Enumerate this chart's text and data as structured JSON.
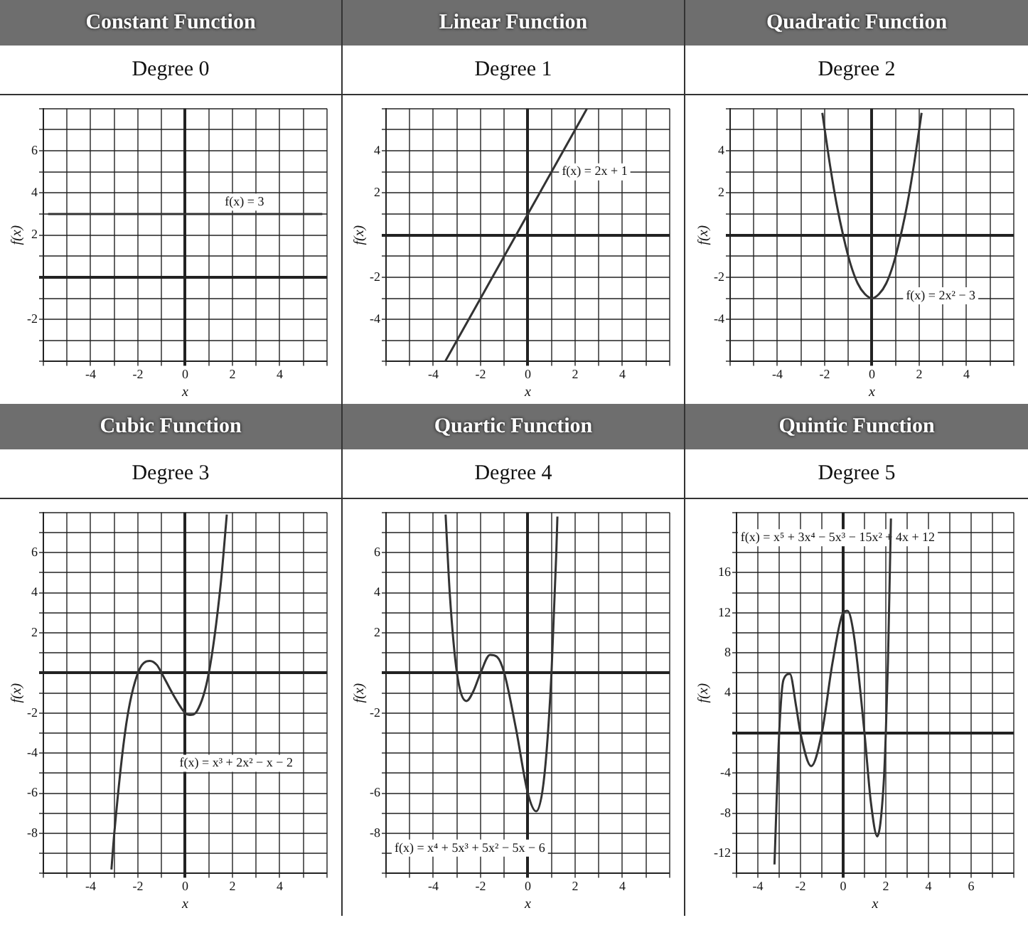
{
  "chart_data": [
    {
      "type": "line",
      "title": "Constant Function",
      "subtitle": "Degree 0",
      "xlabel": "x",
      "ylabel": "f(x)",
      "grid": true,
      "xlim": [
        -6,
        6
      ],
      "ylim": [
        -4,
        8
      ],
      "xticks": [
        {
          "value": -6,
          "label": null
        },
        {
          "value": -5,
          "label": null
        },
        -4,
        {
          "value": -3,
          "label": null
        },
        -2,
        {
          "value": -1,
          "label": null
        },
        0,
        {
          "value": 1,
          "label": null
        },
        2,
        {
          "value": 3,
          "label": null
        },
        4,
        {
          "value": 5,
          "label": null
        },
        {
          "value": 6,
          "label": null
        }
      ],
      "yticks": [
        {
          "value": -4,
          "label": null
        },
        {
          "value": -3,
          "label": null
        },
        -2,
        {
          "value": -1,
          "label": null
        },
        {
          "value": 0,
          "label": null
        },
        {
          "value": 1,
          "label": null
        },
        2,
        {
          "value": 3,
          "label": null
        },
        4,
        {
          "value": 5,
          "label": null
        },
        6,
        {
          "value": 7,
          "label": null
        },
        {
          "value": 8,
          "label": null
        }
      ],
      "series": [
        {
          "color": "#333333",
          "x": [
            -5.8,
            -4,
            -2,
            0,
            2,
            4,
            5.8
          ],
          "values": [
            3,
            3,
            3,
            3,
            3,
            3,
            3
          ]
        }
      ],
      "annotations": [
        "f(x) = 3"
      ]
    },
    {
      "type": "line",
      "title": "Linear Function",
      "subtitle": "Degree 1",
      "xlabel": "x",
      "ylabel": "f(x)",
      "grid": true,
      "xlim": [
        -6,
        6
      ],
      "ylim": [
        -6,
        6
      ],
      "xticks": [
        {
          "value": -6,
          "label": null
        },
        {
          "value": -5,
          "label": null
        },
        -4,
        {
          "value": -3,
          "label": null
        },
        -2,
        {
          "value": -1,
          "label": null
        },
        0,
        {
          "value": 1,
          "label": null
        },
        2,
        {
          "value": 3,
          "label": null
        },
        4,
        {
          "value": 5,
          "label": null
        },
        {
          "value": 6,
          "label": null
        }
      ],
      "yticks": [
        {
          "value": -6,
          "label": null
        },
        {
          "value": -5,
          "label": null
        },
        -4,
        {
          "value": -3,
          "label": null
        },
        -2,
        {
          "value": -1,
          "label": null
        },
        {
          "value": 0,
          "label": null
        },
        {
          "value": 1,
          "label": null
        },
        2,
        {
          "value": 3,
          "label": null
        },
        4,
        {
          "value": 5,
          "label": null
        },
        {
          "value": 6,
          "label": null
        }
      ],
      "series": [
        {
          "color": "#333333",
          "x": [
            -3.5,
            -2,
            -1,
            0,
            1,
            2,
            2.5
          ],
          "values": [
            -6,
            -3,
            -1,
            1,
            3,
            5,
            6
          ]
        }
      ],
      "annotations": [
        "f(x) = 2x + 1"
      ]
    },
    {
      "type": "line",
      "title": "Quadratic Function",
      "subtitle": "Degree 2",
      "xlabel": "x",
      "ylabel": "f(x)",
      "grid": true,
      "xlim": [
        -6,
        6
      ],
      "ylim": [
        -6,
        6
      ],
      "xticks": [
        {
          "value": -6,
          "label": null
        },
        {
          "value": -5,
          "label": null
        },
        -4,
        {
          "value": -3,
          "label": null
        },
        -2,
        {
          "value": -1,
          "label": null
        },
        0,
        {
          "value": 1,
          "label": null
        },
        2,
        {
          "value": 3,
          "label": null
        },
        4,
        {
          "value": 5,
          "label": null
        },
        {
          "value": 6,
          "label": null
        }
      ],
      "yticks": [
        {
          "value": -6,
          "label": null
        },
        {
          "value": -5,
          "label": null
        },
        -4,
        {
          "value": -3,
          "label": null
        },
        -2,
        {
          "value": -1,
          "label": null
        },
        {
          "value": 0,
          "label": null
        },
        {
          "value": 1,
          "label": null
        },
        2,
        {
          "value": 3,
          "label": null
        },
        4,
        {
          "value": 5,
          "label": null
        },
        {
          "value": 6,
          "label": null
        }
      ],
      "series": [
        {
          "color": "#333333",
          "x": [
            -2.1,
            -1.8,
            -1.5,
            -1.2,
            -0.9,
            -0.6,
            -0.3,
            0,
            0.3,
            0.6,
            0.9,
            1.2,
            1.5,
            1.8,
            2.1
          ],
          "values": [
            5.8,
            3.5,
            1.5,
            -0.1,
            -1.4,
            -2.3,
            -2.8,
            -3,
            -2.8,
            -2.3,
            -1.4,
            -0.1,
            1.5,
            3.5,
            5.8
          ]
        }
      ],
      "annotations": [
        "f(x) = 2x² − 3"
      ]
    },
    {
      "type": "line",
      "title": "Cubic Function",
      "subtitle": "Degree 3",
      "xlabel": "x",
      "ylabel": "f(x)",
      "grid": true,
      "xlim": [
        -6,
        6
      ],
      "ylim": [
        -10,
        8
      ],
      "xticks": [
        {
          "value": -6,
          "label": null
        },
        {
          "value": -5,
          "label": null
        },
        -4,
        {
          "value": -3,
          "label": null
        },
        -2,
        {
          "value": -1,
          "label": null
        },
        0,
        {
          "value": 1,
          "label": null
        },
        2,
        {
          "value": 3,
          "label": null
        },
        4,
        {
          "value": 5,
          "label": null
        },
        {
          "value": 6,
          "label": null
        }
      ],
      "yticks": [
        {
          "value": -10,
          "label": null
        },
        {
          "value": -9,
          "label": null
        },
        -8,
        {
          "value": -7,
          "label": null
        },
        -6,
        {
          "value": -5,
          "label": null
        },
        -4,
        {
          "value": -3,
          "label": null
        },
        -2,
        {
          "value": -1,
          "label": null
        },
        {
          "value": 0,
          "label": null
        },
        {
          "value": 1,
          "label": null
        },
        2,
        {
          "value": 3,
          "label": null
        },
        4,
        {
          "value": 5,
          "label": null
        },
        6,
        {
          "value": 7,
          "label": null
        },
        {
          "value": 8,
          "label": null
        }
      ],
      "series": [
        {
          "color": "#333333",
          "x": [
            -3.12,
            -3,
            -2.5,
            -2,
            -1.5,
            -1.2,
            -1,
            -0.5,
            0,
            0.2,
            0.5,
            1,
            1.5,
            1.76
          ],
          "values": [
            -9.8,
            -8,
            -2.6,
            0,
            0.6,
            0.4,
            0,
            -1.1,
            -2,
            -2.1,
            -1.9,
            0,
            4.4,
            7.9
          ]
        }
      ],
      "annotations": [
        "f(x) = x³ + 2x² − x − 2"
      ]
    },
    {
      "type": "line",
      "title": "Quartic Function",
      "subtitle": "Degree 4",
      "xlabel": "x",
      "ylabel": "f(x)",
      "grid": true,
      "xlim": [
        -6,
        6
      ],
      "ylim": [
        -10,
        8
      ],
      "xticks": [
        {
          "value": -6,
          "label": null
        },
        {
          "value": -5,
          "label": null
        },
        -4,
        {
          "value": -3,
          "label": null
        },
        -2,
        {
          "value": -1,
          "label": null
        },
        0,
        {
          "value": 1,
          "label": null
        },
        2,
        {
          "value": 3,
          "label": null
        },
        4,
        {
          "value": 5,
          "label": null
        },
        {
          "value": 6,
          "label": null
        }
      ],
      "yticks": [
        {
          "value": -10,
          "label": null
        },
        {
          "value": -9,
          "label": null
        },
        -8,
        {
          "value": -7,
          "label": null
        },
        -6,
        {
          "value": -5,
          "label": null
        },
        {
          "value": -4,
          "label": null
        },
        {
          "value": -3,
          "label": null
        },
        -2,
        {
          "value": -1,
          "label": null
        },
        {
          "value": 0,
          "label": null
        },
        {
          "value": 1,
          "label": null
        },
        2,
        {
          "value": 3,
          "label": null
        },
        4,
        {
          "value": 5,
          "label": null
        },
        6,
        {
          "value": 7,
          "label": null
        },
        {
          "value": 8,
          "label": null
        }
      ],
      "series": [
        {
          "color": "#333333",
          "x": [
            -3.48,
            -3.3,
            -3,
            -2.6,
            -2.3,
            -2,
            -1.6,
            -1.3,
            -1,
            -0.5,
            0,
            0.35,
            0.7,
            1,
            1.2,
            1.25
          ],
          "values": [
            7.9,
            3.9,
            0,
            -1.4,
            -0.9,
            0,
            0.9,
            0.8,
            0,
            -2.8,
            -6,
            -6.9,
            -5.1,
            0,
            5.9,
            7.8
          ]
        }
      ],
      "annotations": [
        "f(x) = x⁴ + 5x³ + 5x² − 5x − 6"
      ]
    },
    {
      "type": "line",
      "title": "Quintic Function",
      "subtitle": "Degree 5",
      "xlabel": "x",
      "ylabel": "f(x)",
      "grid": true,
      "xlim": [
        -5,
        8
      ],
      "ylim": [
        -14,
        22
      ],
      "xticks": [
        {
          "value": -5,
          "label": null
        },
        -4,
        {
          "value": -3,
          "label": null
        },
        -2,
        {
          "value": -1,
          "label": null
        },
        0,
        {
          "value": 1,
          "label": null
        },
        2,
        {
          "value": 3,
          "label": null
        },
        4,
        {
          "value": 5,
          "label": null
        },
        6,
        {
          "value": 7,
          "label": null
        },
        {
          "value": 8,
          "label": null
        }
      ],
      "yticks": [
        {
          "value": -14,
          "label": null
        },
        -12,
        {
          "value": -10,
          "label": null
        },
        -8,
        {
          "value": -6,
          "label": null
        },
        -4,
        {
          "value": -2,
          "label": null
        },
        {
          "value": 0,
          "label": null
        },
        {
          "value": 2,
          "label": null
        },
        4,
        {
          "value": 6,
          "label": null
        },
        8,
        {
          "value": 10,
          "label": null
        },
        12,
        {
          "value": 14,
          "label": null
        },
        16,
        {
          "value": 18,
          "label": null
        },
        {
          "value": 20,
          "label": null
        },
        {
          "value": 22,
          "label": null
        }
      ],
      "series": [
        {
          "color": "#333333",
          "x": [
            -3.22,
            -3,
            -2.8,
            -2.5,
            -2.2,
            -2,
            -1.5,
            -1,
            -0.5,
            0,
            0.2,
            0.5,
            1,
            1.3,
            1.6,
            1.9,
            2,
            2.1,
            2.24
          ],
          "values": [
            -13.1,
            0,
            5.3,
            5.9,
            2.6,
            0,
            -3.3,
            0,
            7,
            12,
            12.2,
            9.8,
            0,
            -6.9,
            -10.3,
            -5,
            0,
            7.1,
            21.4
          ]
        }
      ],
      "annotations": [
        "f(x) = x⁵ + 3x⁴ − 5x³ − 15x² + 4x + 12"
      ]
    }
  ]
}
